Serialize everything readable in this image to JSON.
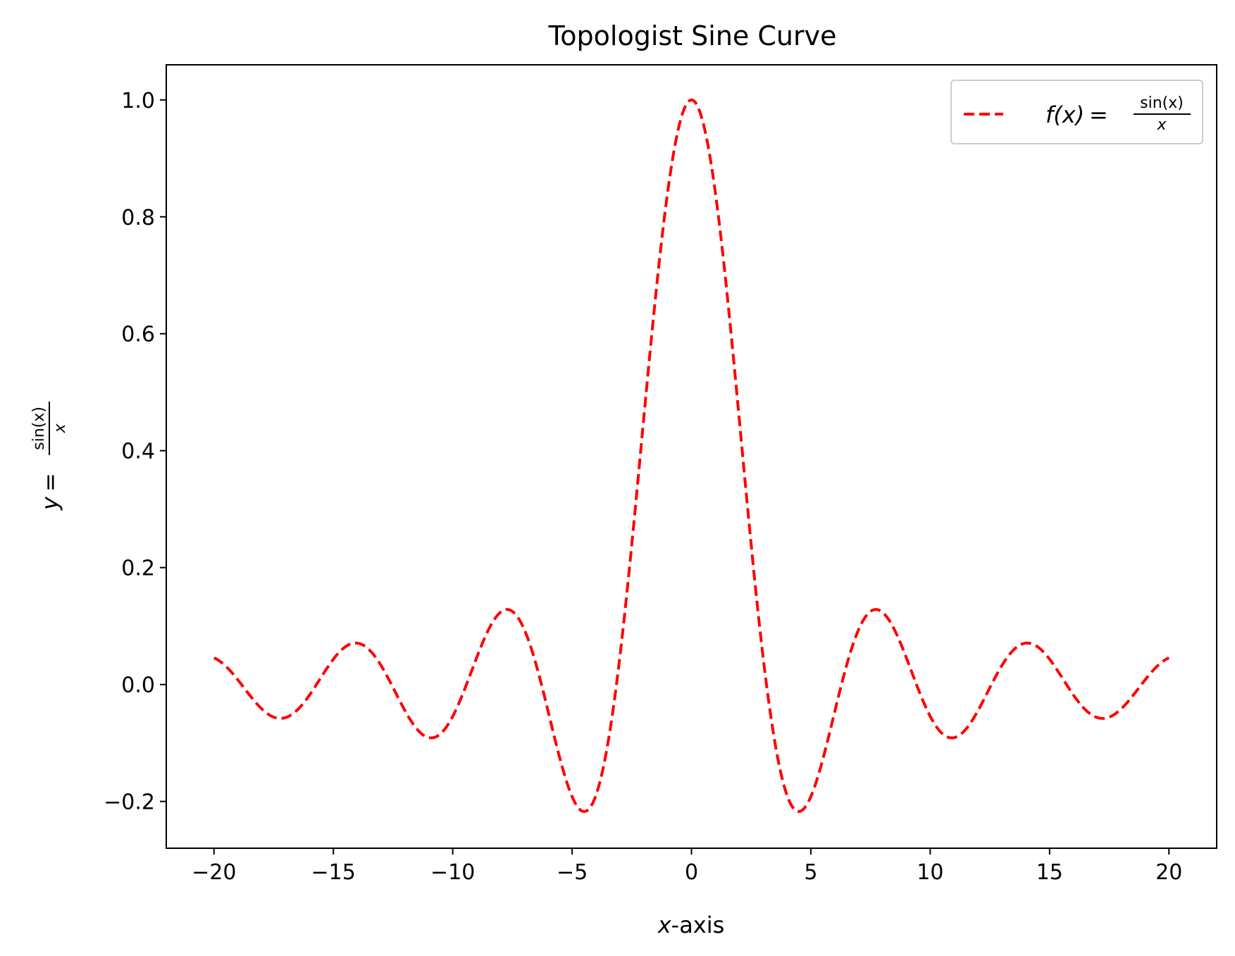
{
  "chart_data": {
    "type": "line",
    "title": "Topologist Sine Curve",
    "xlabel_var": "x",
    "xlabel_rest": "-axis",
    "ylabel": {
      "lhs": "y",
      "eq": "=",
      "numerator": "sin(x)",
      "denominator": "x"
    },
    "xlim": [
      -22,
      22
    ],
    "ylim": [
      -0.28,
      1.06
    ],
    "xticks": [
      -20,
      -15,
      -10,
      -5,
      0,
      5,
      10,
      15,
      20
    ],
    "xtick_labels": [
      "−20",
      "−15",
      "−10",
      "−5",
      "0",
      "5",
      "10",
      "15",
      "20"
    ],
    "yticks": [
      -0.2,
      0.0,
      0.2,
      0.4,
      0.6,
      0.8,
      1.0
    ],
    "ytick_labels": [
      "−0.2",
      "0.0",
      "0.2",
      "0.4",
      "0.6",
      "0.8",
      "1.0"
    ],
    "grid": false,
    "legend_position": "top-right",
    "series": [
      {
        "name_func": "f(x)",
        "name_eq": "=",
        "name_numerator": "sin(x)",
        "name_denominator": "x",
        "color": "#ff0000",
        "linestyle": "dashed",
        "x": [
          -20,
          -19,
          -18,
          -17.2,
          -16,
          -15,
          -14.1,
          -13,
          -12,
          -10.9,
          -10,
          -9,
          -7.7,
          -7,
          -6,
          -5,
          -4.5,
          -4,
          -3,
          -2,
          -1,
          0,
          1,
          2,
          3,
          4,
          4.5,
          5,
          6,
          7,
          7.7,
          9,
          10,
          10.9,
          12,
          13,
          14.1,
          15,
          16,
          17.2,
          18,
          19,
          20
        ],
        "y": [
          0.046,
          0.008,
          -0.042,
          -0.058,
          -0.018,
          0.043,
          0.071,
          0.032,
          -0.045,
          -0.091,
          -0.054,
          0.046,
          0.128,
          0.094,
          -0.047,
          -0.192,
          -0.217,
          -0.189,
          0.047,
          0.455,
          0.841,
          1.0,
          0.841,
          0.455,
          0.047,
          -0.189,
          -0.217,
          -0.192,
          -0.047,
          0.094,
          0.128,
          0.046,
          -0.054,
          -0.091,
          -0.045,
          0.032,
          0.071,
          0.043,
          -0.018,
          -0.058,
          -0.042,
          0.008,
          0.046
        ]
      }
    ]
  }
}
